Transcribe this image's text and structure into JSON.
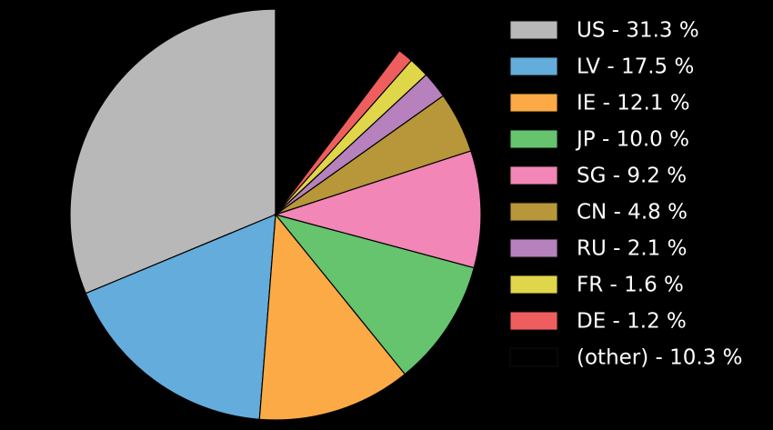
{
  "chart_data": {
    "type": "pie",
    "categories": [
      "US - 31.3 %",
      "LV - 17.5 %",
      "IE - 12.1 %",
      "JP - 10.0 %",
      "SG - 9.2 %",
      "CN - 4.8 %",
      "RU - 2.1 %",
      "FR - 1.6 %",
      "DE - 1.2 %",
      "(other) - 10.3 %"
    ],
    "values": [
      31.3,
      17.5,
      12.1,
      10.0,
      9.2,
      4.8,
      2.1,
      1.6,
      1.2,
      10.3
    ],
    "colors": [
      "#b8b8b8",
      "#64acdc",
      "#fbaa45",
      "#66c36e",
      "#f286b6",
      "#b7973a",
      "#b681bd",
      "#e0d64a",
      "#ef5e5e",
      "#000000"
    ],
    "legend": "right"
  }
}
